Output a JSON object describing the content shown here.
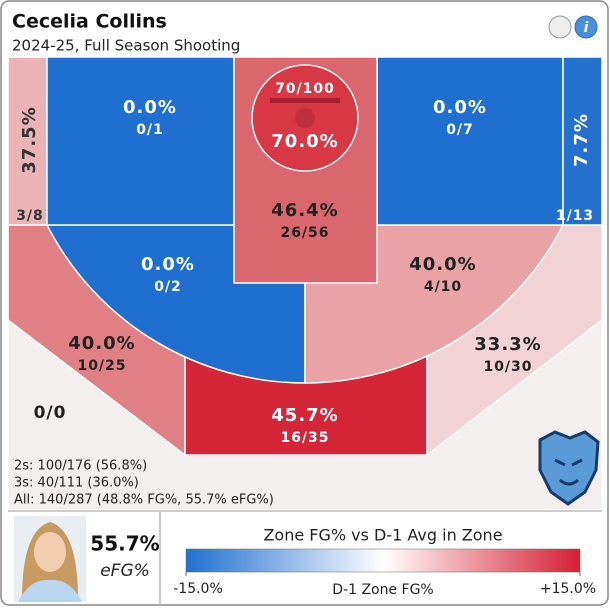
{
  "header": {
    "title": "Cecelia Collins",
    "subtitle": "2024-25, Full Season Shooting"
  },
  "zones": [
    {
      "pct": "37.5%",
      "shots": "3/8",
      "color": "#ebb3b6"
    },
    {
      "pct": "0.0%",
      "shots": "0/1",
      "color": "#1f6fd1"
    },
    {
      "pct": "70.0%",
      "shots": "70/100",
      "color": "#d83844"
    },
    {
      "pct": "46.4%",
      "shots": "26/56",
      "color": "#d9676d"
    },
    {
      "pct": "0.0%",
      "shots": "0/7",
      "color": "#1f6fd1"
    },
    {
      "pct": "7.7%",
      "shots": "1/13",
      "color": "#2370cf"
    },
    {
      "pct": "0.0%",
      "shots": "0/2",
      "color": "#1f6fd1"
    },
    {
      "pct": "40.0%",
      "shots": "4/10",
      "color": "#e9a2a5"
    },
    {
      "pct": "40.0%",
      "shots": "10/25",
      "color": "#e07f84"
    },
    {
      "pct": "45.7%",
      "shots": "16/35",
      "color": "#d42636"
    },
    {
      "pct": "33.3%",
      "shots": "10/30",
      "color": "#f1d3d5"
    },
    {
      "shots": "0/0",
      "color": "#f4efef"
    }
  ],
  "summary": [
    "2s: 100/176 (56.8%)",
    "3s: 40/111 (36.0%)",
    "All: 140/287 (48.8% FG%, 55.7% eFG%)"
  ],
  "player": {
    "value": "55.7%",
    "label": "eFG%"
  },
  "legend": {
    "title": "Zone FG% vs D-1 Avg in Zone",
    "axis_label": "D-1 Zone FG%",
    "colors": [
      "#1f6fd1",
      "#ffffff",
      "#d41f33"
    ],
    "ticks": [
      {
        "value": -15,
        "label": "-15.0%"
      },
      {
        "value": 15,
        "label": "+15.0%"
      }
    ]
  }
}
